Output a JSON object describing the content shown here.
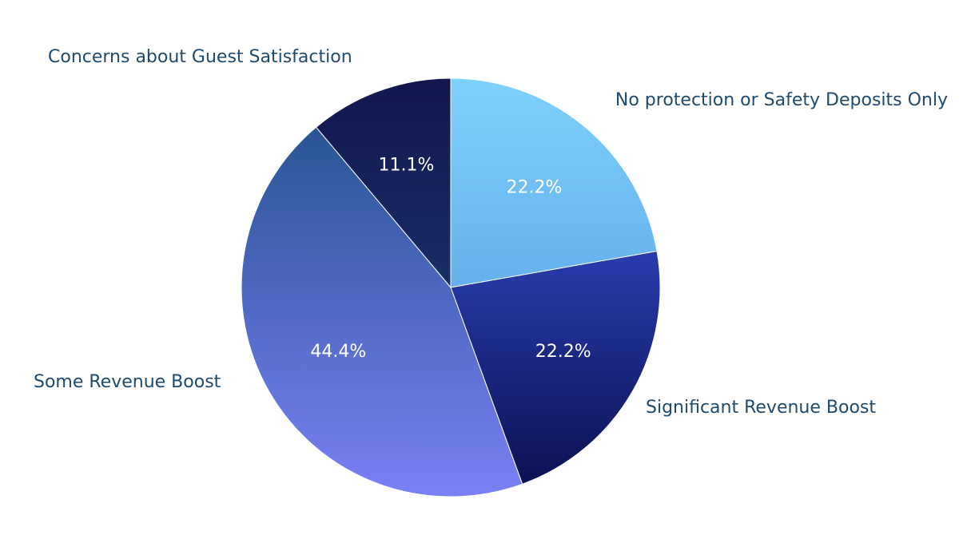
{
  "chart_data": {
    "type": "pie",
    "title": "",
    "slices": [
      {
        "name": "No protection or Safety Deposits Only",
        "value": 22.2,
        "value_label": "22.2%",
        "gradient": [
          "#7fd1fc",
          "#4a90dd"
        ]
      },
      {
        "name": "Significant Revenue Boost",
        "value": 22.2,
        "value_label": "22.2%",
        "gradient": [
          "#3d5cf0",
          "#0a0f4e"
        ]
      },
      {
        "name": "Some Revenue Boost",
        "value": 44.4,
        "value_label": "44.4%",
        "gradient": [
          "#1f4f88",
          "#7a80f5"
        ]
      },
      {
        "name": "Concerns about Guest Satisfaction",
        "value": 11.1,
        "value_label": "11.1%",
        "gradient": [
          "#12164e",
          "#1f4680"
        ]
      }
    ],
    "start_angle_deg": 0,
    "direction": "clockwise"
  }
}
